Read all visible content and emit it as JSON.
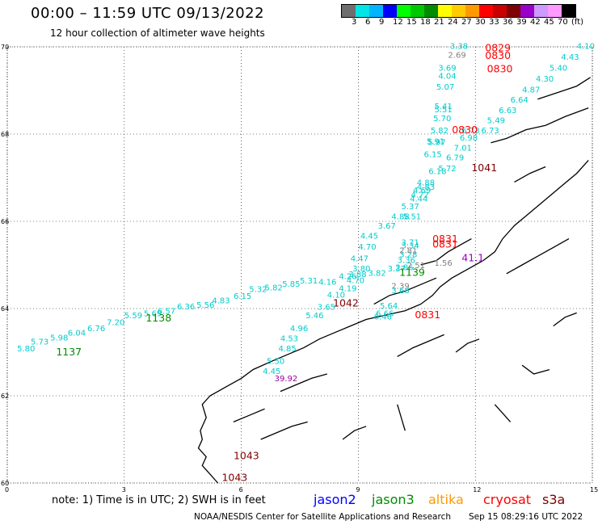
{
  "header": {
    "title": "00:00 – 11:59 UTC 09/13/2022",
    "subtitle": "12 hour collection of altimeter wave heights"
  },
  "colorbar": {
    "colors": [
      "#6e6e6e",
      "#00e5e5",
      "#00b4ff",
      "#0000ff",
      "#00ff00",
      "#00c800",
      "#008c00",
      "#ffff00",
      "#ffcc00",
      "#ff9900",
      "#ff0000",
      "#c80000",
      "#7f0000",
      "#9900cc",
      "#cc99ff",
      "#ff99ff",
      "#000000"
    ],
    "labels": [
      "3",
      "6",
      "9",
      "12",
      "15",
      "18",
      "21",
      "24",
      "27",
      "30",
      "33",
      "36",
      "39",
      "42",
      "45",
      "70",
      "(ft)"
    ]
  },
  "axes": {
    "lat_ticks": [
      "70",
      "68",
      "66",
      "64",
      "62",
      "60"
    ],
    "lon_ticks": [
      "0",
      "3",
      "6",
      "9",
      "12",
      "15"
    ]
  },
  "observations": [
    {
      "lon": 11.35,
      "lat": 69.95,
      "text": "3.38",
      "color": "#00cccc"
    },
    {
      "lon": 11.3,
      "lat": 69.75,
      "text": "2.69",
      "color": "#808080"
    },
    {
      "lon": 11.05,
      "lat": 69.45,
      "text": "3.69",
      "color": "#00cccc"
    },
    {
      "lon": 11.05,
      "lat": 69.27,
      "text": "4.04",
      "color": "#00cccc"
    },
    {
      "lon": 11.0,
      "lat": 69.02,
      "text": "5.07",
      "color": "#00cccc"
    },
    {
      "lon": 10.95,
      "lat": 68.57,
      "text": "5.41",
      "color": "#00cccc"
    },
    {
      "lon": 10.95,
      "lat": 68.5,
      "text": "5.51",
      "color": "#00cccc"
    },
    {
      "lon": 10.92,
      "lat": 68.3,
      "text": "5.70",
      "color": "#00cccc"
    },
    {
      "lon": 10.85,
      "lat": 68.02,
      "text": "5.82",
      "color": "#00cccc"
    },
    {
      "lon": 10.75,
      "lat": 67.77,
      "text": "5.91",
      "color": "#00cccc"
    },
    {
      "lon": 10.78,
      "lat": 67.75,
      "text": "5.97",
      "color": "#00cccc"
    },
    {
      "lon": 10.68,
      "lat": 67.47,
      "text": "6.15",
      "color": "#00cccc"
    },
    {
      "lon": 10.8,
      "lat": 67.08,
      "text": "6.18",
      "color": "#00cccc"
    },
    {
      "lon": 10.5,
      "lat": 66.82,
      "text": "4.88",
      "color": "#00cccc"
    },
    {
      "lon": 10.5,
      "lat": 66.72,
      "text": "4.83",
      "color": "#00cccc"
    },
    {
      "lon": 10.4,
      "lat": 66.65,
      "text": "4.69",
      "color": "#00cccc"
    },
    {
      "lon": 10.35,
      "lat": 66.55,
      "text": "4.72",
      "color": "#00cccc"
    },
    {
      "lon": 10.32,
      "lat": 66.45,
      "text": "4.44",
      "color": "#00cccc"
    },
    {
      "lon": 10.1,
      "lat": 66.28,
      "text": "5.37",
      "color": "#00cccc"
    },
    {
      "lon": 9.85,
      "lat": 66.05,
      "text": "4.88",
      "color": "#00cccc"
    },
    {
      "lon": 10.15,
      "lat": 66.05,
      "text": "5.51",
      "color": "#00cccc"
    },
    {
      "lon": 9.5,
      "lat": 65.83,
      "text": "3.67",
      "color": "#00cccc"
    },
    {
      "lon": 9.05,
      "lat": 65.6,
      "text": "4.45",
      "color": "#00cccc"
    },
    {
      "lon": 9.0,
      "lat": 65.35,
      "text": "4.70",
      "color": "#00cccc"
    },
    {
      "lon": 8.8,
      "lat": 65.08,
      "text": "4.47",
      "color": "#00cccc"
    },
    {
      "lon": 8.85,
      "lat": 64.85,
      "text": "3.80",
      "color": "#00cccc"
    },
    {
      "lon": 8.7,
      "lat": 64.58,
      "text": "4.70",
      "color": "#00cccc"
    },
    {
      "lon": 8.5,
      "lat": 64.4,
      "text": "4.19",
      "color": "#00cccc"
    },
    {
      "lon": 8.2,
      "lat": 64.25,
      "text": "4.10",
      "color": "#00cccc"
    },
    {
      "lon": 7.95,
      "lat": 63.97,
      "text": "3.65",
      "color": "#00cccc"
    },
    {
      "lon": 7.65,
      "lat": 63.78,
      "text": "5.46",
      "color": "#00cccc"
    },
    {
      "lon": 7.25,
      "lat": 63.48,
      "text": "4.96",
      "color": "#00cccc"
    },
    {
      "lon": 7.0,
      "lat": 63.25,
      "text": "4.53",
      "color": "#00cccc"
    },
    {
      "lon": 6.95,
      "lat": 63.02,
      "text": "4.85",
      "color": "#00cccc"
    },
    {
      "lon": 6.65,
      "lat": 62.73,
      "text": "5.50",
      "color": "#00cccc"
    },
    {
      "lon": 6.55,
      "lat": 62.5,
      "text": "4.45",
      "color": "#00cccc"
    },
    {
      "lon": 6.85,
      "lat": 62.33,
      "text": "39.92",
      "color": "#990099"
    },
    {
      "lon": 0.25,
      "lat": 63.02,
      "text": "5.80",
      "color": "#00cccc"
    },
    {
      "lon": 0.6,
      "lat": 63.18,
      "text": "5.73",
      "color": "#00cccc"
    },
    {
      "lon": 1.1,
      "lat": 63.27,
      "text": "5.98",
      "color": "#00cccc"
    },
    {
      "lon": 1.55,
      "lat": 63.38,
      "text": "6.04",
      "color": "#00cccc"
    },
    {
      "lon": 2.05,
      "lat": 63.48,
      "text": "6.76",
      "color": "#00cccc"
    },
    {
      "lon": 2.55,
      "lat": 63.62,
      "text": "7.20",
      "color": "#00cccc"
    },
    {
      "lon": 3.0,
      "lat": 63.78,
      "text": "5.59",
      "color": "#00cccc"
    },
    {
      "lon": 3.5,
      "lat": 63.82,
      "text": "5.69",
      "color": "#00cccc"
    },
    {
      "lon": 3.85,
      "lat": 63.88,
      "text": "6.57",
      "color": "#00cccc"
    },
    {
      "lon": 4.35,
      "lat": 63.98,
      "text": "6.36",
      "color": "#00cccc"
    },
    {
      "lon": 4.85,
      "lat": 64.02,
      "text": "5.56",
      "color": "#00cccc"
    },
    {
      "lon": 5.25,
      "lat": 64.12,
      "text": "4.83",
      "color": "#00cccc"
    },
    {
      "lon": 5.8,
      "lat": 64.22,
      "text": "6.15",
      "color": "#00cccc"
    },
    {
      "lon": 6.2,
      "lat": 64.38,
      "text": "5.32",
      "color": "#00cccc"
    },
    {
      "lon": 6.6,
      "lat": 64.42,
      "text": "5.82",
      "color": "#00cccc"
    },
    {
      "lon": 7.05,
      "lat": 64.5,
      "text": "5.85",
      "color": "#00cccc"
    },
    {
      "lon": 7.5,
      "lat": 64.57,
      "text": "5.31",
      "color": "#00cccc"
    },
    {
      "lon": 7.98,
      "lat": 64.55,
      "text": "4.16",
      "color": "#00cccc"
    },
    {
      "lon": 8.5,
      "lat": 64.68,
      "text": "4.26",
      "color": "#00cccc"
    },
    {
      "lon": 8.75,
      "lat": 64.72,
      "text": "3.88",
      "color": "#00cccc"
    },
    {
      "lon": 9.25,
      "lat": 64.75,
      "text": "3.82",
      "color": "#00cccc"
    },
    {
      "lon": 9.75,
      "lat": 64.85,
      "text": "3.37",
      "color": "#00cccc"
    },
    {
      "lon": 9.95,
      "lat": 64.88,
      "text": "2.86",
      "color": "#00cccc"
    },
    {
      "lon": 10.25,
      "lat": 64.93,
      "text": "2.51",
      "color": "#808080"
    },
    {
      "lon": 10.95,
      "lat": 64.98,
      "text": "1.56",
      "color": "#808080"
    },
    {
      "lon": 10.1,
      "lat": 65.45,
      "text": "3.71",
      "color": "#00cccc"
    },
    {
      "lon": 10.1,
      "lat": 65.38,
      "text": "3.34",
      "color": "#00cccc"
    },
    {
      "lon": 10.0,
      "lat": 65.05,
      "text": "3.36",
      "color": "#00cccc"
    },
    {
      "lon": 10.05,
      "lat": 65.18,
      "text": "3.28",
      "color": "#00cccc"
    },
    {
      "lon": 10.05,
      "lat": 65.27,
      "text": "2.81",
      "color": "#808080"
    },
    {
      "lon": 9.85,
      "lat": 64.45,
      "text": "2.39",
      "color": "#808080"
    },
    {
      "lon": 9.85,
      "lat": 64.35,
      "text": "3.68",
      "color": "#00cccc"
    },
    {
      "lon": 9.55,
      "lat": 64.0,
      "text": "5.64",
      "color": "#00cccc"
    },
    {
      "lon": 9.45,
      "lat": 63.82,
      "text": "6.66",
      "color": "#00cccc"
    },
    {
      "lon": 9.4,
      "lat": 63.75,
      "text": "6.46",
      "color": "#00cccc"
    },
    {
      "lon": 11.65,
      "lat": 68.02,
      "text": "6.73",
      "color": "#00cccc"
    },
    {
      "lon": 11.6,
      "lat": 67.85,
      "text": "6.98",
      "color": "#00cccc"
    },
    {
      "lon": 11.45,
      "lat": 67.62,
      "text": "7.01",
      "color": "#00cccc"
    },
    {
      "lon": 11.25,
      "lat": 67.4,
      "text": "6.79",
      "color": "#00cccc"
    },
    {
      "lon": 11.05,
      "lat": 67.15,
      "text": "5.72",
      "color": "#00cccc"
    },
    {
      "lon": 14.6,
      "lat": 69.95,
      "text": "4.10",
      "color": "#00cccc"
    },
    {
      "lon": 14.2,
      "lat": 69.7,
      "text": "4.43",
      "color": "#00cccc"
    },
    {
      "lon": 13.9,
      "lat": 69.45,
      "text": "5.40",
      "color": "#00cccc"
    },
    {
      "lon": 13.55,
      "lat": 69.2,
      "text": "4.30",
      "color": "#00cccc"
    },
    {
      "lon": 13.2,
      "lat": 68.95,
      "text": "4.87",
      "color": "#00cccc"
    },
    {
      "lon": 12.9,
      "lat": 68.72,
      "text": "6.64",
      "color": "#00cccc"
    },
    {
      "lon": 12.6,
      "lat": 68.48,
      "text": "6.63",
      "color": "#00cccc"
    },
    {
      "lon": 12.3,
      "lat": 68.25,
      "text": "5.49",
      "color": "#00cccc"
    },
    {
      "lon": 12.15,
      "lat": 68.02,
      "text": "6.73",
      "color": "#00cccc"
    }
  ],
  "passes": [
    {
      "lon": 12.25,
      "lat": 69.9,
      "text": "0829",
      "color": "#ff0000"
    },
    {
      "lon": 12.25,
      "lat": 69.72,
      "text": "0830",
      "color": "#ff0000"
    },
    {
      "lon": 12.3,
      "lat": 69.42,
      "text": "0830",
      "color": "#ff0000"
    },
    {
      "lon": 11.4,
      "lat": 68.02,
      "text": "0830",
      "color": "#ff0000"
    },
    {
      "lon": 11.9,
      "lat": 67.15,
      "text": "1041",
      "color": "#7f0000"
    },
    {
      "lon": 10.9,
      "lat": 65.52,
      "text": "0831",
      "color": "#ff0000"
    },
    {
      "lon": 10.9,
      "lat": 65.4,
      "text": "0831",
      "color": "#ff0000"
    },
    {
      "lon": 11.65,
      "lat": 65.08,
      "text": "41.1",
      "color": "#9900cc"
    },
    {
      "lon": 10.05,
      "lat": 64.75,
      "text": "1139",
      "color": "#008c00"
    },
    {
      "lon": 8.35,
      "lat": 64.05,
      "text": "1042",
      "color": "#7f0000"
    },
    {
      "lon": 10.45,
      "lat": 63.78,
      "text": "0831",
      "color": "#ff0000"
    },
    {
      "lon": 3.55,
      "lat": 63.7,
      "text": "1138",
      "color": "#008c00"
    },
    {
      "lon": 1.25,
      "lat": 62.93,
      "text": "1137",
      "color": "#008c00"
    },
    {
      "lon": 5.8,
      "lat": 60.55,
      "text": "1043",
      "color": "#7f0000"
    },
    {
      "lon": 5.5,
      "lat": 60.05,
      "text": "1043",
      "color": "#7f0000"
    }
  ],
  "footer": {
    "note": "note: 1) Time is in UTC; 2) SWH is in feet",
    "satellites": [
      {
        "name": "jason2",
        "color": "#0000ff"
      },
      {
        "name": "jason3",
        "color": "#008c00"
      },
      {
        "name": "altika",
        "color": "#ff9900"
      },
      {
        "name": "cryosat",
        "color": "#ff0000"
      },
      {
        "name": "s3a",
        "color": "#7f0000"
      }
    ],
    "credit": "NOAA/NESDIS Center for Satellite Applications and Research",
    "timestamp": "Sep 15 08:29:16 UTC 2022"
  }
}
